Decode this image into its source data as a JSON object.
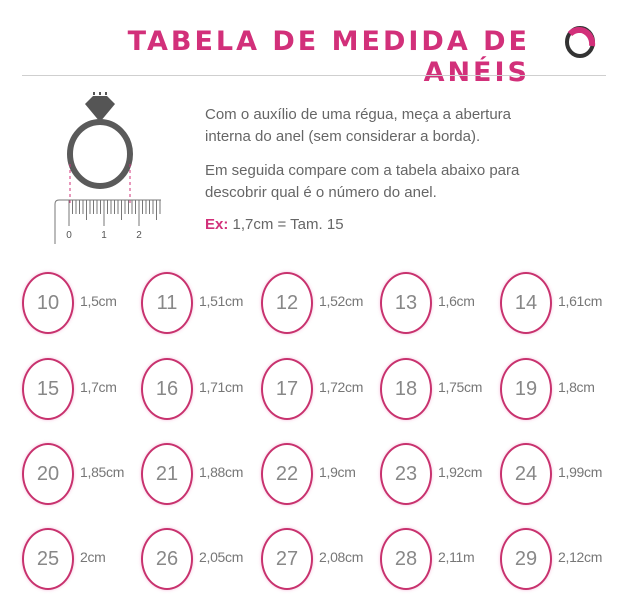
{
  "header": {
    "title": "TABELA DE MEDIDA DE ANÉIS",
    "logo_icon": "ring-logo-icon"
  },
  "colors": {
    "accent": "#d2307a",
    "ring_border": "#c8326e",
    "text": "#666666"
  },
  "illustration": {
    "ruler_labels": [
      "0",
      "1",
      "2"
    ]
  },
  "instructions": {
    "line1": "Com o auxílio de uma régua, meça a abertura",
    "line2": "interna do anel (sem considerar a borda).",
    "line3": "Em seguida compare com a tabela abaixo para",
    "line4": "descobrir qual é o número do anel.",
    "example_label": "Ex:",
    "example_text": " 1,7cm = Tam. 15"
  },
  "sizes": [
    {
      "size": "10",
      "measure": "1,5cm"
    },
    {
      "size": "11",
      "measure": "1,51cm"
    },
    {
      "size": "12",
      "measure": "1,52cm"
    },
    {
      "size": "13",
      "measure": "1,6cm"
    },
    {
      "size": "14",
      "measure": "1,61cm"
    },
    {
      "size": "15",
      "measure": "1,7cm"
    },
    {
      "size": "16",
      "measure": "1,71cm"
    },
    {
      "size": "17",
      "measure": "1,72cm"
    },
    {
      "size": "18",
      "measure": "1,75cm"
    },
    {
      "size": "19",
      "measure": "1,8cm"
    },
    {
      "size": "20",
      "measure": "1,85cm"
    },
    {
      "size": "21",
      "measure": "1,88cm"
    },
    {
      "size": "22",
      "measure": "1,9cm"
    },
    {
      "size": "23",
      "measure": "1,92cm"
    },
    {
      "size": "24",
      "measure": "1,99cm"
    },
    {
      "size": "25",
      "measure": "2cm"
    },
    {
      "size": "26",
      "measure": "2,05cm"
    },
    {
      "size": "27",
      "measure": "2,08cm"
    },
    {
      "size": "28",
      "measure": "2,11m"
    },
    {
      "size": "29",
      "measure": "2,12cm"
    }
  ]
}
